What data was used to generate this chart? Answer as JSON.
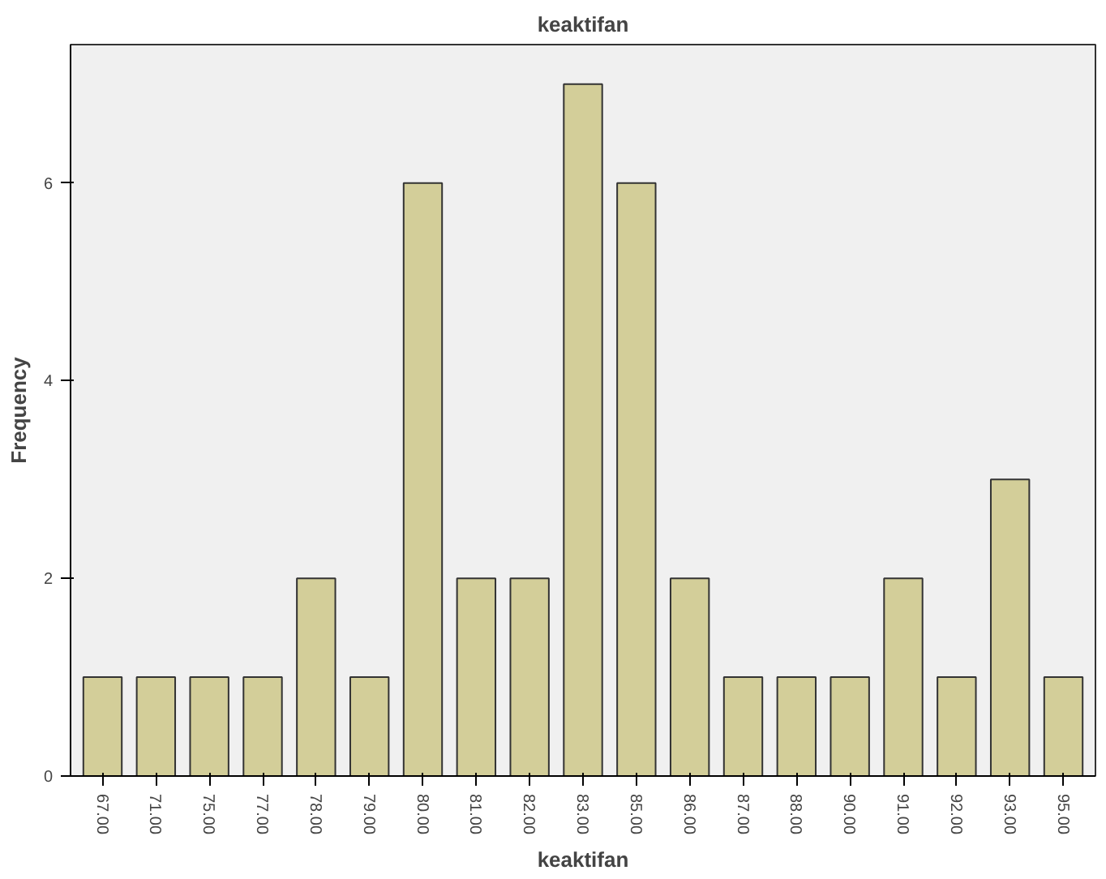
{
  "chart_data": {
    "type": "bar",
    "title": "keaktifan",
    "xlabel": "keaktifan",
    "ylabel": "Frequency",
    "categories": [
      "67.00",
      "71.00",
      "75.00",
      "77.00",
      "78.00",
      "79.00",
      "80.00",
      "81.00",
      "82.00",
      "83.00",
      "85.00",
      "86.00",
      "87.00",
      "88.00",
      "90.00",
      "91.00",
      "92.00",
      "93.00",
      "95.00"
    ],
    "values": [
      1,
      1,
      1,
      1,
      2,
      1,
      6,
      2,
      2,
      7,
      6,
      2,
      1,
      1,
      1,
      2,
      1,
      3,
      1
    ],
    "color": "#d3ce99",
    "ylim": [
      0,
      7.4
    ],
    "yticks": [
      0,
      2,
      4,
      6
    ],
    "grid": false
  }
}
